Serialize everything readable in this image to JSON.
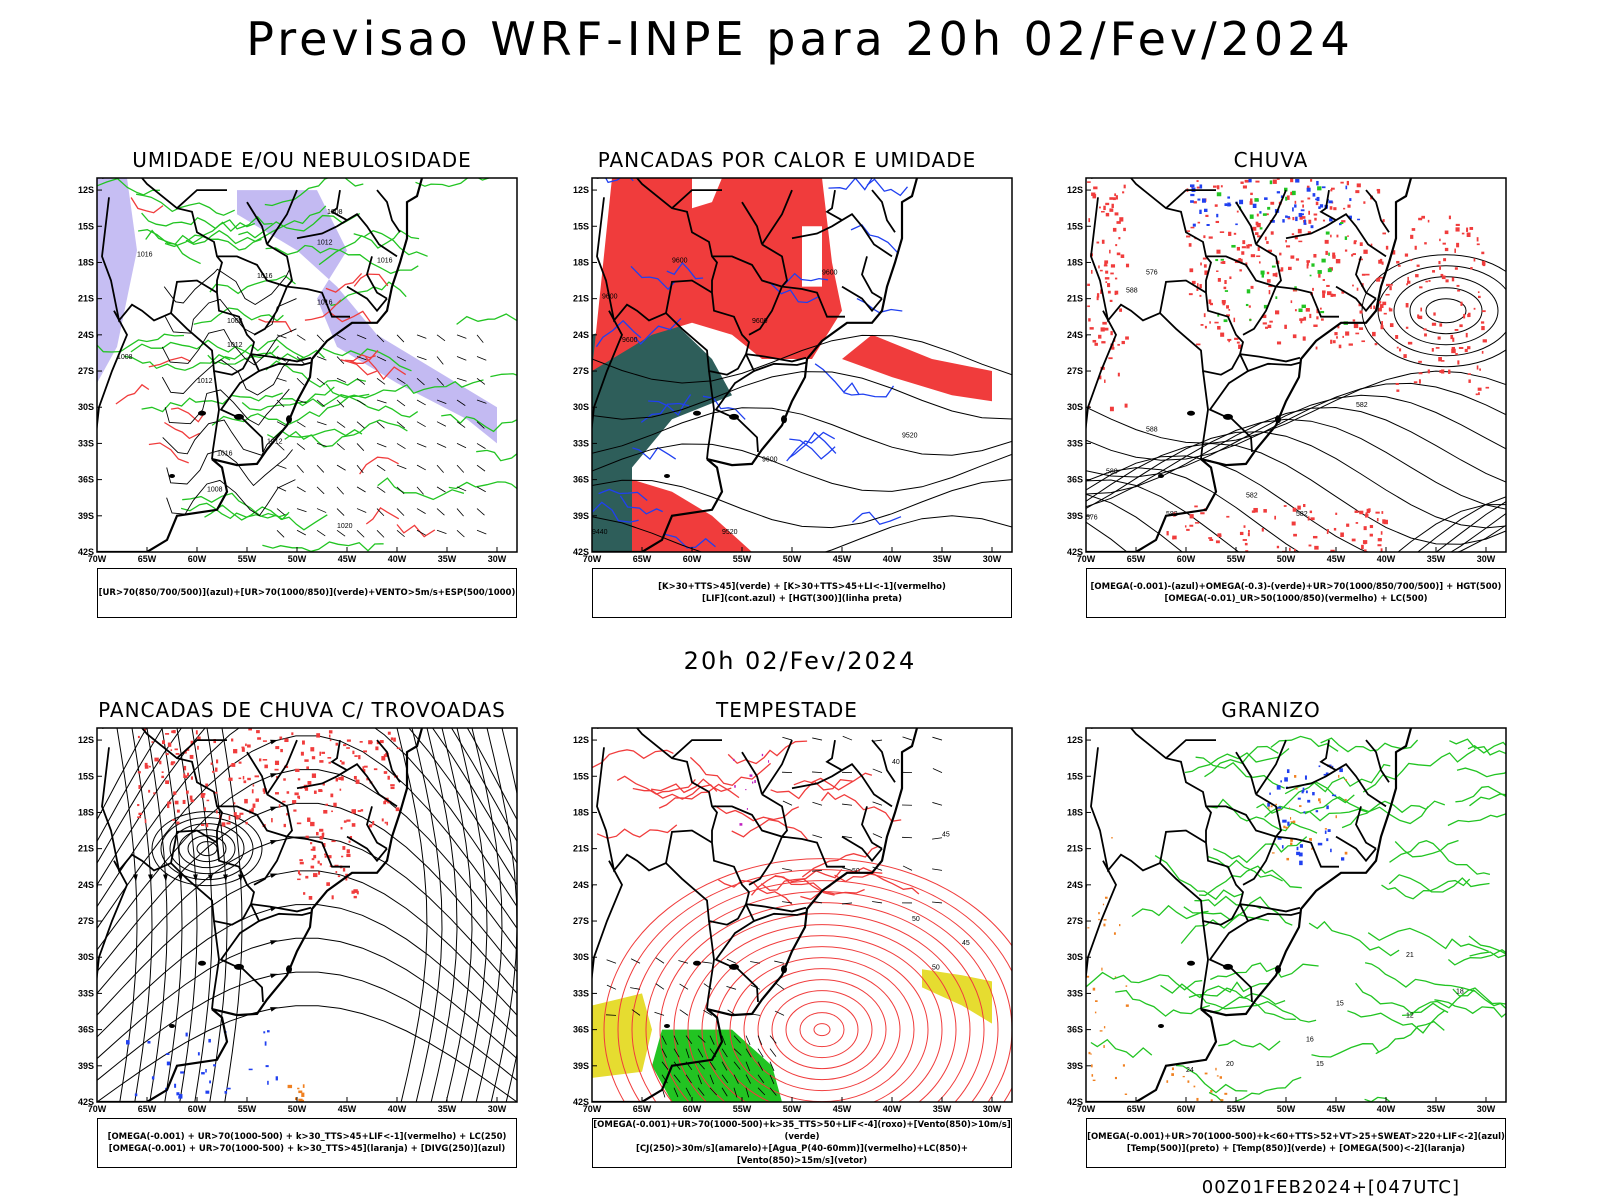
{
  "title": "Previsao WRF-INPE  para 20h 02/Fev/2024",
  "subtitle": "20h 02/Fev/2024",
  "footer": "00Z01FEB2024+[047UTC]",
  "axis": {
    "lon_labels": [
      "70W",
      "65W",
      "60W",
      "55W",
      "50W",
      "45W",
      "40W",
      "35W",
      "30W"
    ],
    "lat_labels": [
      "12S",
      "15S",
      "18S",
      "21S",
      "24S",
      "27S",
      "30S",
      "33S",
      "36S",
      "39S",
      "42S"
    ]
  },
  "panels": [
    {
      "title": "UMIDADE E/OU NEBULOSIDADE",
      "legend": [
        "[UR>70(850/700/500)](azul)+[UR>70(1000/850)](verde)+VENTO>5m/s+ESP(500/1000)"
      ],
      "contour_labels": [
        "1008",
        "1016",
        "1012",
        "1008",
        "1012",
        "1016",
        "1016",
        "1016",
        "1008",
        "1012",
        "1016",
        "1012",
        "1008",
        "1020"
      ]
    },
    {
      "title": "PANCADAS POR CALOR E UMIDADE",
      "legend": [
        "[K>30+TTS>45](verde) + [K>30+TTS>45+LI<-1](vermelho)",
        "[LIF](cont.azul) + [HGT(300)](linha preta)"
      ],
      "contour_labels": [
        "9600",
        "9600",
        "9600",
        "9600",
        "9600",
        "9520",
        "9600",
        "9520",
        "9440"
      ]
    },
    {
      "title": "CHUVA",
      "legend": [
        "[OMEGA(-0.001)-(azul)+OMEGA(-0.3)-(verde)+UR>70(1000/850/700/500)] + HGT(500)",
        "[OMEGA(-0.01)_UR>50(1000/850)(vermelho) + LC(500)"
      ],
      "contour_labels": [
        "588",
        "582",
        "588",
        "582",
        "576",
        "582",
        "588",
        "576",
        "582"
      ]
    },
    {
      "title": "PANCADAS DE CHUVA C/ TROVOADAS",
      "legend": [
        "[OMEGA(-0.001) + UR>70(1000-500) + k>30_TTS>45+LIF<-1](vermelho) + LC(250)",
        "[OMEGA(-0.001) + UR>70(1000-500) + k>30_TTS>45](laranja) + [DIVG(250)](azul)"
      ],
      "contour_labels": []
    },
    {
      "title": "TEMPESTADE",
      "legend": [
        "[OMEGA(-0.001)+UR>70(1000-500)+k>35_TTS>50+LIF<-4](roxo)+[Vento(850)>10m/s](verde)",
        "[CJ(250)>30m/s](amarelo)+[Agua_P(40-60mm)](vermelho)+LC(850)+[Vento(850)>15m/s](vetor)"
      ],
      "contour_labels": [
        "50",
        "50",
        "45",
        "40",
        "50",
        "45"
      ]
    },
    {
      "title": "GRANIZO",
      "legend": [
        "[OMEGA(-0.001)+UR>70(1000-500)+k<60+TTS>52+VT>25+SWEAT>220+LIF<-2](azul)",
        "[Temp(500)](preto) + [Temp(850)](verde) + [OMEGA(500)<-2](laranja)"
      ],
      "contour_labels": [
        "15",
        "16",
        "20",
        "24",
        "12",
        "15",
        "18",
        "21"
      ]
    }
  ],
  "colors": {
    "red": "#f03c3c",
    "green": "#22c422",
    "blue": "#2040f0",
    "lavender": "#b8aef0",
    "teal": "#2e5e5a",
    "yellow": "#e6dc30",
    "orange": "#f08020",
    "purple": "#c020c0",
    "black": "#000000"
  }
}
